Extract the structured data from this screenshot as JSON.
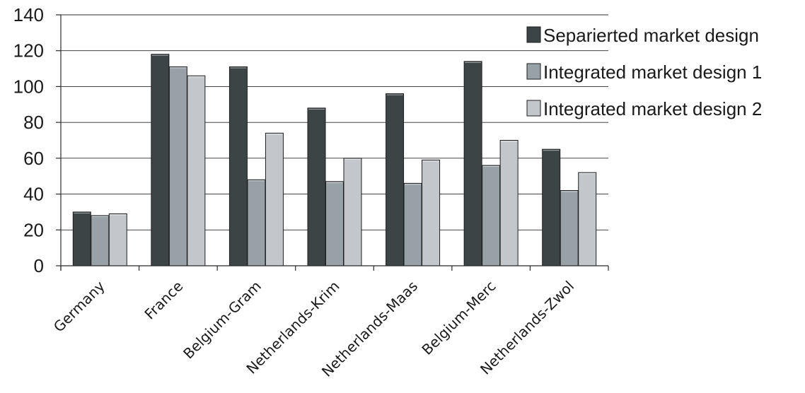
{
  "chart_data": {
    "type": "bar",
    "categories": [
      "Germany",
      "France",
      "Belgium-Gram",
      "Netherlands-Krim",
      "Netherlands-Maas",
      "Belgium-Merc",
      "Netherlands-Zwol"
    ],
    "series": [
      {
        "name": "Separierted market design",
        "color": "#3d4446",
        "values": [
          30,
          118,
          111,
          88,
          96,
          114,
          65
        ]
      },
      {
        "name": "Integrated market design 1",
        "color": "#98a1a6",
        "values": [
          28,
          111,
          48,
          47,
          46,
          56,
          42
        ]
      },
      {
        "name": "Integrated market design 2",
        "color": "#c3c7cb",
        "values": [
          29,
          106,
          74,
          60,
          59,
          70,
          52
        ]
      }
    ],
    "yticks": [
      "0",
      "20",
      "40",
      "60",
      "80",
      "100",
      "120",
      "140"
    ],
    "ylim": [
      0,
      140
    ],
    "grid": true,
    "legend": "top-right"
  }
}
